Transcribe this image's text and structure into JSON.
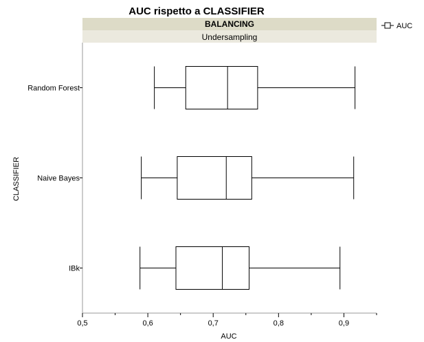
{
  "chart_data": {
    "type": "boxplot",
    "orientation": "horizontal",
    "title": "AUC rispetto a CLASSIFIER",
    "group_header": "BALANCING",
    "group_value": "Undersampling",
    "xlabel": "AUC",
    "ylabel": "CLASSIFIER",
    "xlim": [
      0.5,
      0.95
    ],
    "xticks": [
      "0,5",
      "0,6",
      "0,7",
      "0,8",
      "0,9"
    ],
    "xtick_values": [
      0.5,
      0.6,
      0.7,
      0.8,
      0.9
    ],
    "minor_tick_step": 0.05,
    "legend": {
      "label": "AUC",
      "position": "top-right"
    },
    "series_name": "AUC",
    "categories": [
      "Random Forest",
      "Naive Bayes",
      "IBk"
    ],
    "boxes": [
      {
        "category": "Random Forest",
        "min": 0.61,
        "q1": 0.658,
        "median": 0.722,
        "q3": 0.768,
        "max": 0.917
      },
      {
        "category": "Naive Bayes",
        "min": 0.59,
        "q1": 0.645,
        "median": 0.72,
        "q3": 0.759,
        "max": 0.915
      },
      {
        "category": "IBk",
        "min": 0.588,
        "q1": 0.643,
        "median": 0.714,
        "q3": 0.755,
        "max": 0.894
      }
    ]
  }
}
